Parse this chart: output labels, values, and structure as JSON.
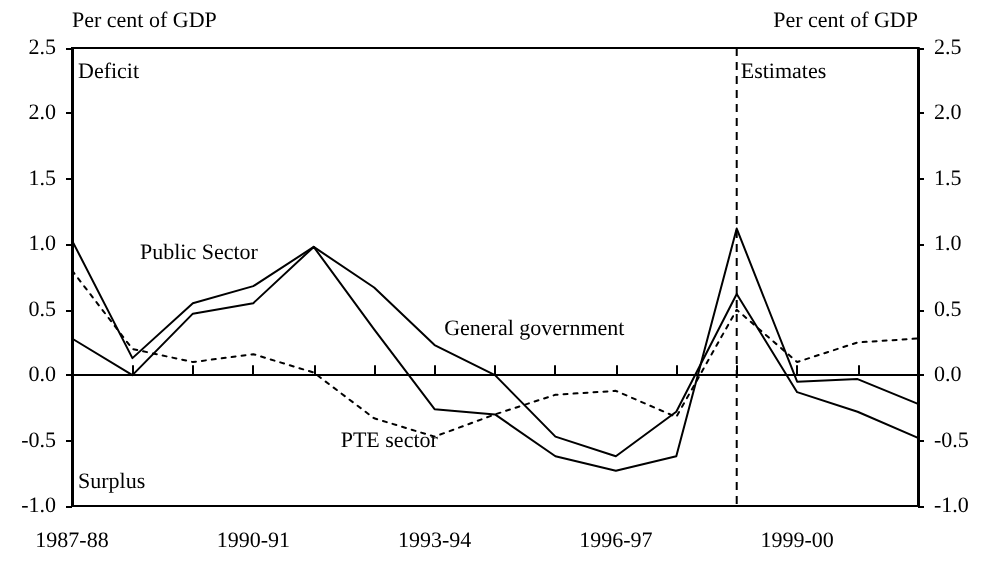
{
  "chart_data": {
    "type": "line",
    "categories": [
      "1987-88",
      null,
      null,
      "1990-91",
      null,
      null,
      "1993-94",
      null,
      null,
      "1996-97",
      null,
      null,
      "1999-00",
      null,
      null
    ],
    "series": [
      {
        "name": "Public Sector",
        "color": "#000000",
        "line_style": "solid",
        "values": [
          1.03,
          0.13,
          0.55,
          0.68,
          0.98,
          0.35,
          -0.26,
          -0.3,
          -0.62,
          -0.73,
          -0.62,
          1.12,
          -0.05,
          -0.03,
          -0.22
        ]
      },
      {
        "name": "General government",
        "color": "#000000",
        "line_style": "solid",
        "values": [
          0.28,
          0.0,
          0.47,
          0.55,
          0.98,
          0.67,
          0.23,
          0.0,
          -0.47,
          -0.62,
          -0.28,
          0.62,
          -0.13,
          -0.28,
          -0.48
        ]
      },
      {
        "name": "PTE sector",
        "color": "#000000",
        "line_style": "dotted",
        "values": [
          0.8,
          0.2,
          0.1,
          0.16,
          0.02,
          -0.33,
          -0.47,
          -0.3,
          -0.15,
          -0.12,
          -0.32,
          0.5,
          0.1,
          0.25,
          0.28
        ]
      }
    ],
    "ylabel": "Per cent of GDP",
    "y2label": "Per cent of GDP",
    "ylim": [
      -1,
      2.5
    ],
    "yticks": [
      {
        "value": -1,
        "label": "-1.0"
      },
      -0.5,
      {
        "value": 0,
        "label": "0.0"
      },
      0.5,
      {
        "value": 1,
        "label": "1.0"
      },
      1.5,
      {
        "value": 2,
        "label": "2.0"
      },
      2.5
    ],
    "y2lim": [
      -1,
      2.5
    ],
    "y2ticks": [
      {
        "value": -1,
        "label": "-1.0"
      },
      {
        "value": -0.5,
        "label": "-0.5"
      },
      {
        "value": 0,
        "label": "0.0"
      },
      {
        "value": 0.5,
        "label": "0.5"
      },
      {
        "value": 1,
        "label": "1.0"
      },
      {
        "value": 1.5,
        "label": "1.5"
      },
      {
        "value": 2,
        "label": "2.0"
      },
      {
        "value": 2.5,
        "label": "2.5"
      }
    ],
    "annotations": [
      "Deficit",
      "Surplus",
      "Estimates"
    ],
    "marker": "none",
    "legend": false,
    "grid": false
  }
}
